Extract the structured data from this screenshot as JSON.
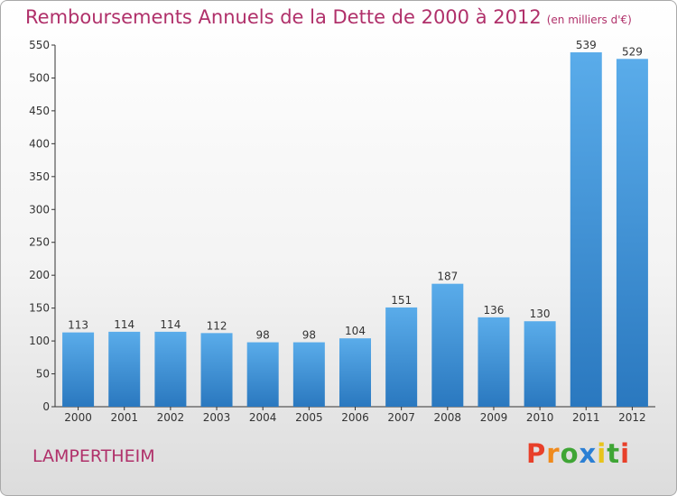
{
  "chart_data": {
    "type": "bar",
    "title": "Remboursements Annuels de la Dette de 2000 à 2012",
    "unit_note": "(en milliers d'€)",
    "categories": [
      "2000",
      "2001",
      "2002",
      "2003",
      "2004",
      "2005",
      "2006",
      "2007",
      "2008",
      "2009",
      "2010",
      "2011",
      "2012"
    ],
    "values": [
      113,
      114,
      114,
      112,
      98,
      98,
      104,
      151,
      187,
      136,
      130,
      539,
      529
    ],
    "ylim": [
      0,
      550
    ],
    "yticks": [
      0,
      50,
      100,
      150,
      200,
      250,
      300,
      350,
      400,
      450,
      500,
      550
    ],
    "grid": false,
    "bar_color": "#4a9de0"
  },
  "footer": {
    "city": "LAMPERTHEIM",
    "brand_letters": [
      "P",
      "r",
      "o",
      "x",
      "i",
      "t",
      "i"
    ],
    "brand_colors": [
      "#e8402a",
      "#f08a1c",
      "#3fa535",
      "#2b7fd4",
      "#e8c41c",
      "#3fa535",
      "#e8402a"
    ]
  }
}
